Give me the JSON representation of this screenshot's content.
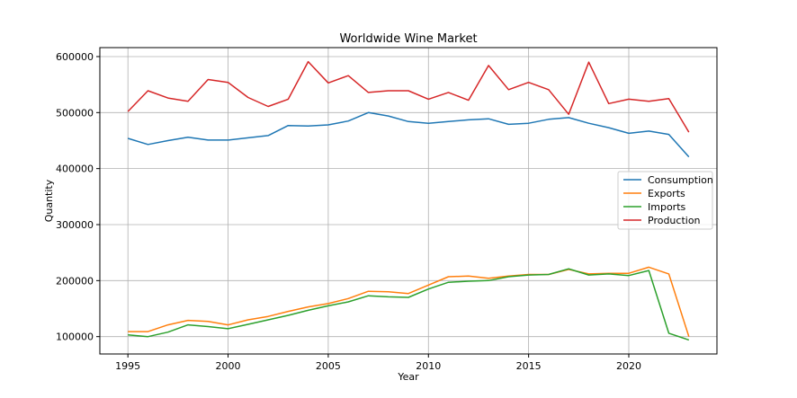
{
  "chart_data": {
    "type": "line",
    "title": "Worldwide Wine Market",
    "xlabel": "Year",
    "ylabel": "Quantity",
    "xlim": [
      1993.6,
      2024.4
    ],
    "ylim": [
      69000,
      616000
    ],
    "xticks": [
      1995,
      2000,
      2005,
      2010,
      2015,
      2020
    ],
    "yticks": [
      100000,
      200000,
      300000,
      400000,
      500000,
      600000
    ],
    "grid": true,
    "legend_position": "center-right",
    "x": [
      1995,
      1996,
      1997,
      1998,
      1999,
      2000,
      2001,
      2002,
      2003,
      2004,
      2005,
      2006,
      2007,
      2008,
      2009,
      2010,
      2011,
      2012,
      2013,
      2014,
      2015,
      2016,
      2017,
      2018,
      2019,
      2020,
      2021,
      2022,
      2023
    ],
    "series": [
      {
        "name": "Consumption",
        "color": "#1f77b4",
        "values": [
          454000,
          443000,
          450000,
          456000,
          451000,
          451000,
          455000,
          459000,
          477000,
          476000,
          478000,
          485000,
          500000,
          494000,
          484000,
          481000,
          484000,
          487000,
          489000,
          479000,
          481000,
          488000,
          491000,
          481000,
          473000,
          463000,
          467000,
          461000,
          421000
        ]
      },
      {
        "name": "Exports",
        "color": "#ff7f0e",
        "values": [
          109000,
          109000,
          121000,
          129000,
          127000,
          121000,
          130000,
          136000,
          145000,
          153000,
          159000,
          168000,
          181000,
          180000,
          177000,
          192000,
          207000,
          208000,
          204000,
          208000,
          211000,
          211000,
          220000,
          212000,
          213000,
          213000,
          224000,
          212000,
          100000
        ]
      },
      {
        "name": "Imports",
        "color": "#2ca02c",
        "values": [
          103000,
          100000,
          108000,
          121000,
          118000,
          114000,
          122000,
          130000,
          138000,
          147000,
          155000,
          162000,
          173000,
          171000,
          170000,
          185000,
          197000,
          199000,
          200000,
          207000,
          210000,
          211000,
          221000,
          210000,
          212000,
          209000,
          218000,
          106000,
          94000
        ]
      },
      {
        "name": "Production",
        "color": "#d62728",
        "values": [
          502000,
          539000,
          526000,
          520000,
          559000,
          554000,
          527000,
          511000,
          524000,
          591000,
          553000,
          566000,
          536000,
          539000,
          539000,
          524000,
          536000,
          522000,
          584000,
          541000,
          554000,
          541000,
          497000,
          590000,
          516000,
          524000,
          520000,
          525000,
          465000
        ]
      }
    ]
  }
}
